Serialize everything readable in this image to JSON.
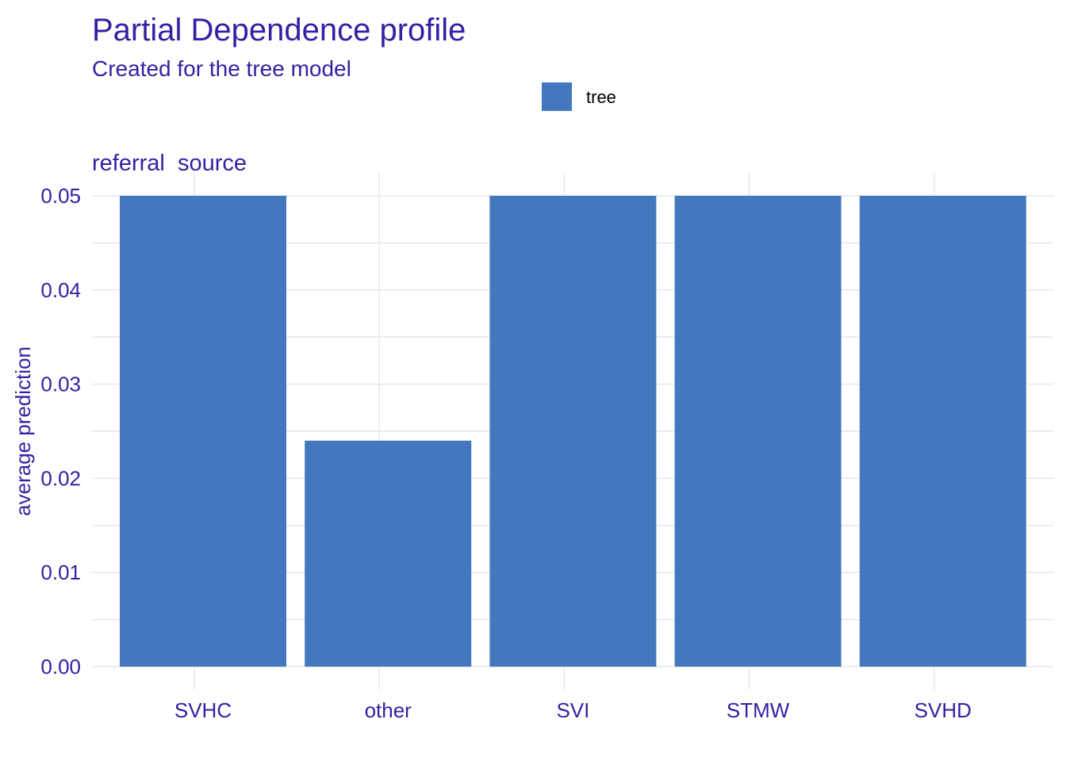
{
  "colors": {
    "text": "#371ea3",
    "bar": "#4378bf",
    "grid": "#e6e6e6",
    "legend_text": "#000000"
  },
  "chart_data": {
    "type": "bar",
    "title": "Partial Dependence profile",
    "subtitle": "Created for the tree model",
    "panel_title": "referral  source",
    "xlabel": "",
    "ylabel": "average prediction",
    "categories": [
      "SVHC",
      "other",
      "SVI",
      "STMW",
      "SVHD"
    ],
    "series": [
      {
        "name": "tree",
        "values": [
          0.05,
          0.024,
          0.05,
          0.05,
          0.05
        ]
      }
    ],
    "ylim": [
      0,
      0.05
    ],
    "yticks": [
      "0.00",
      "0.01",
      "0.02",
      "0.03",
      "0.04",
      "0.05"
    ],
    "grid": true,
    "legend_position": "top"
  }
}
